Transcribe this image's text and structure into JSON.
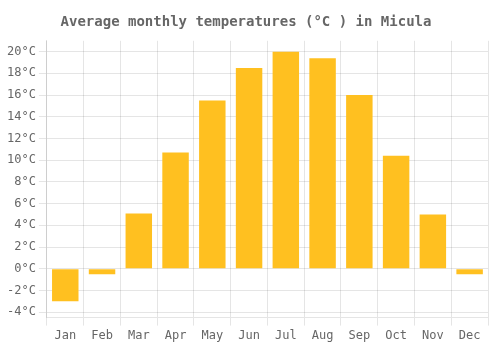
{
  "chart_data": {
    "type": "bar",
    "title": "Average monthly temperatures (°C ) in Micula",
    "categories": [
      "Jan",
      "Feb",
      "Mar",
      "Apr",
      "May",
      "Jun",
      "Jul",
      "Aug",
      "Sep",
      "Oct",
      "Nov",
      "Dec"
    ],
    "values": [
      -3.0,
      -0.5,
      5.1,
      10.7,
      15.5,
      18.5,
      20.0,
      19.4,
      16.0,
      10.4,
      5.0,
      -0.5
    ],
    "color": "#FFC020",
    "ylim": [
      -4.5,
      21
    ],
    "yticks": [
      {
        "value": -4,
        "label": "-4°C"
      },
      {
        "value": -2,
        "label": "-2°C"
      },
      {
        "value": 0,
        "label": "0°C"
      },
      {
        "value": 2,
        "label": "2°C"
      },
      {
        "value": 4,
        "label": "4°C"
      },
      {
        "value": 6,
        "label": "6°C"
      },
      {
        "value": 8,
        "label": "8°C"
      },
      {
        "value": 10,
        "label": "10°C"
      },
      {
        "value": 12,
        "label": "12°C"
      },
      {
        "value": 14,
        "label": "14°C"
      },
      {
        "value": 16,
        "label": "16°C"
      },
      {
        "value": 18,
        "label": "18°C"
      },
      {
        "value": 20,
        "label": "20°C"
      }
    ],
    "grid": true
  }
}
